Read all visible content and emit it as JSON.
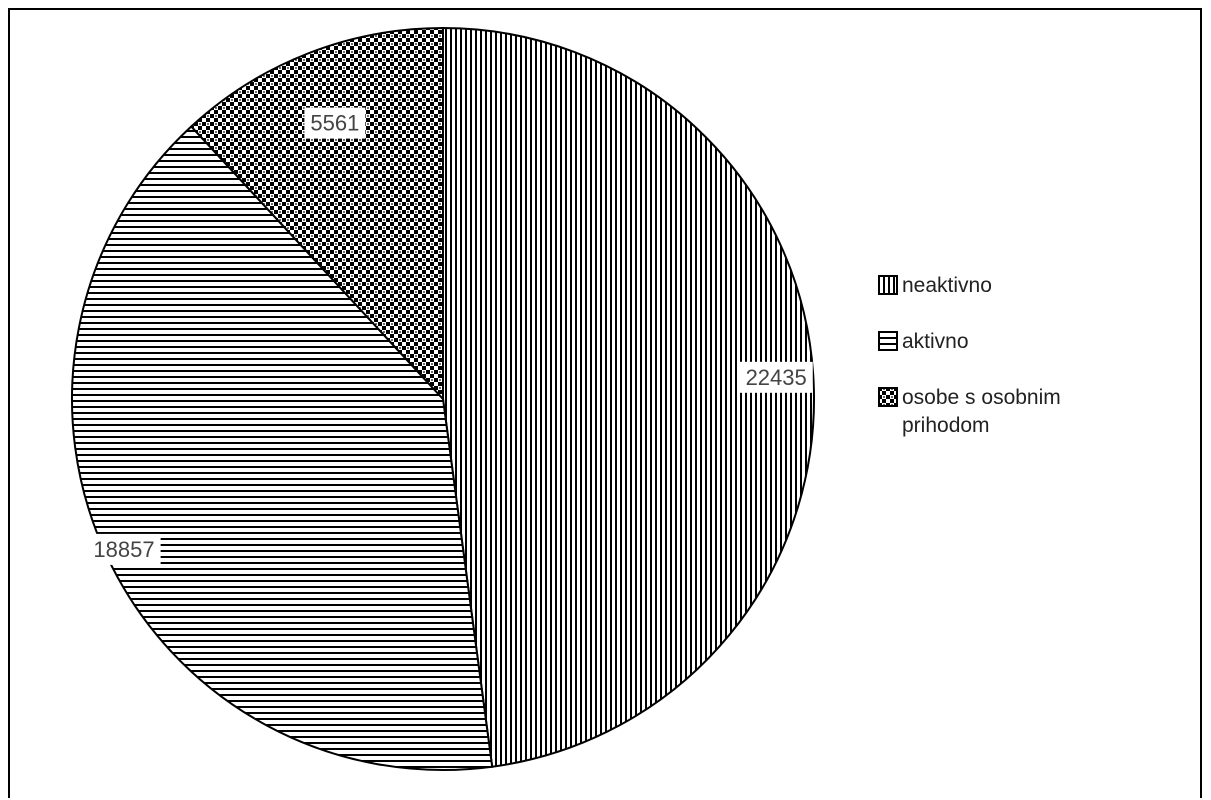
{
  "chart_data": {
    "type": "pie",
    "categories": [
      "neaktivno",
      "aktivno",
      "osobe s osobnim prihodom"
    ],
    "values": [
      22435,
      18857,
      5561
    ],
    "data_labels": [
      "22435",
      "18857",
      "5561"
    ],
    "patterns": [
      "vertical-lines",
      "horizontal-lines",
      "checker-dots"
    ],
    "legend": {
      "placement": "right",
      "items": [
        {
          "label": "neaktivno",
          "pattern": "vertical-lines"
        },
        {
          "label": "aktivno",
          "pattern": "horizontal-lines"
        },
        {
          "label": "osobe s osobnim prihodom",
          "pattern": "checker-dots"
        }
      ]
    },
    "colors": {
      "stroke": "#000000",
      "fill": "#ffffff",
      "label_text": "#444444"
    }
  }
}
